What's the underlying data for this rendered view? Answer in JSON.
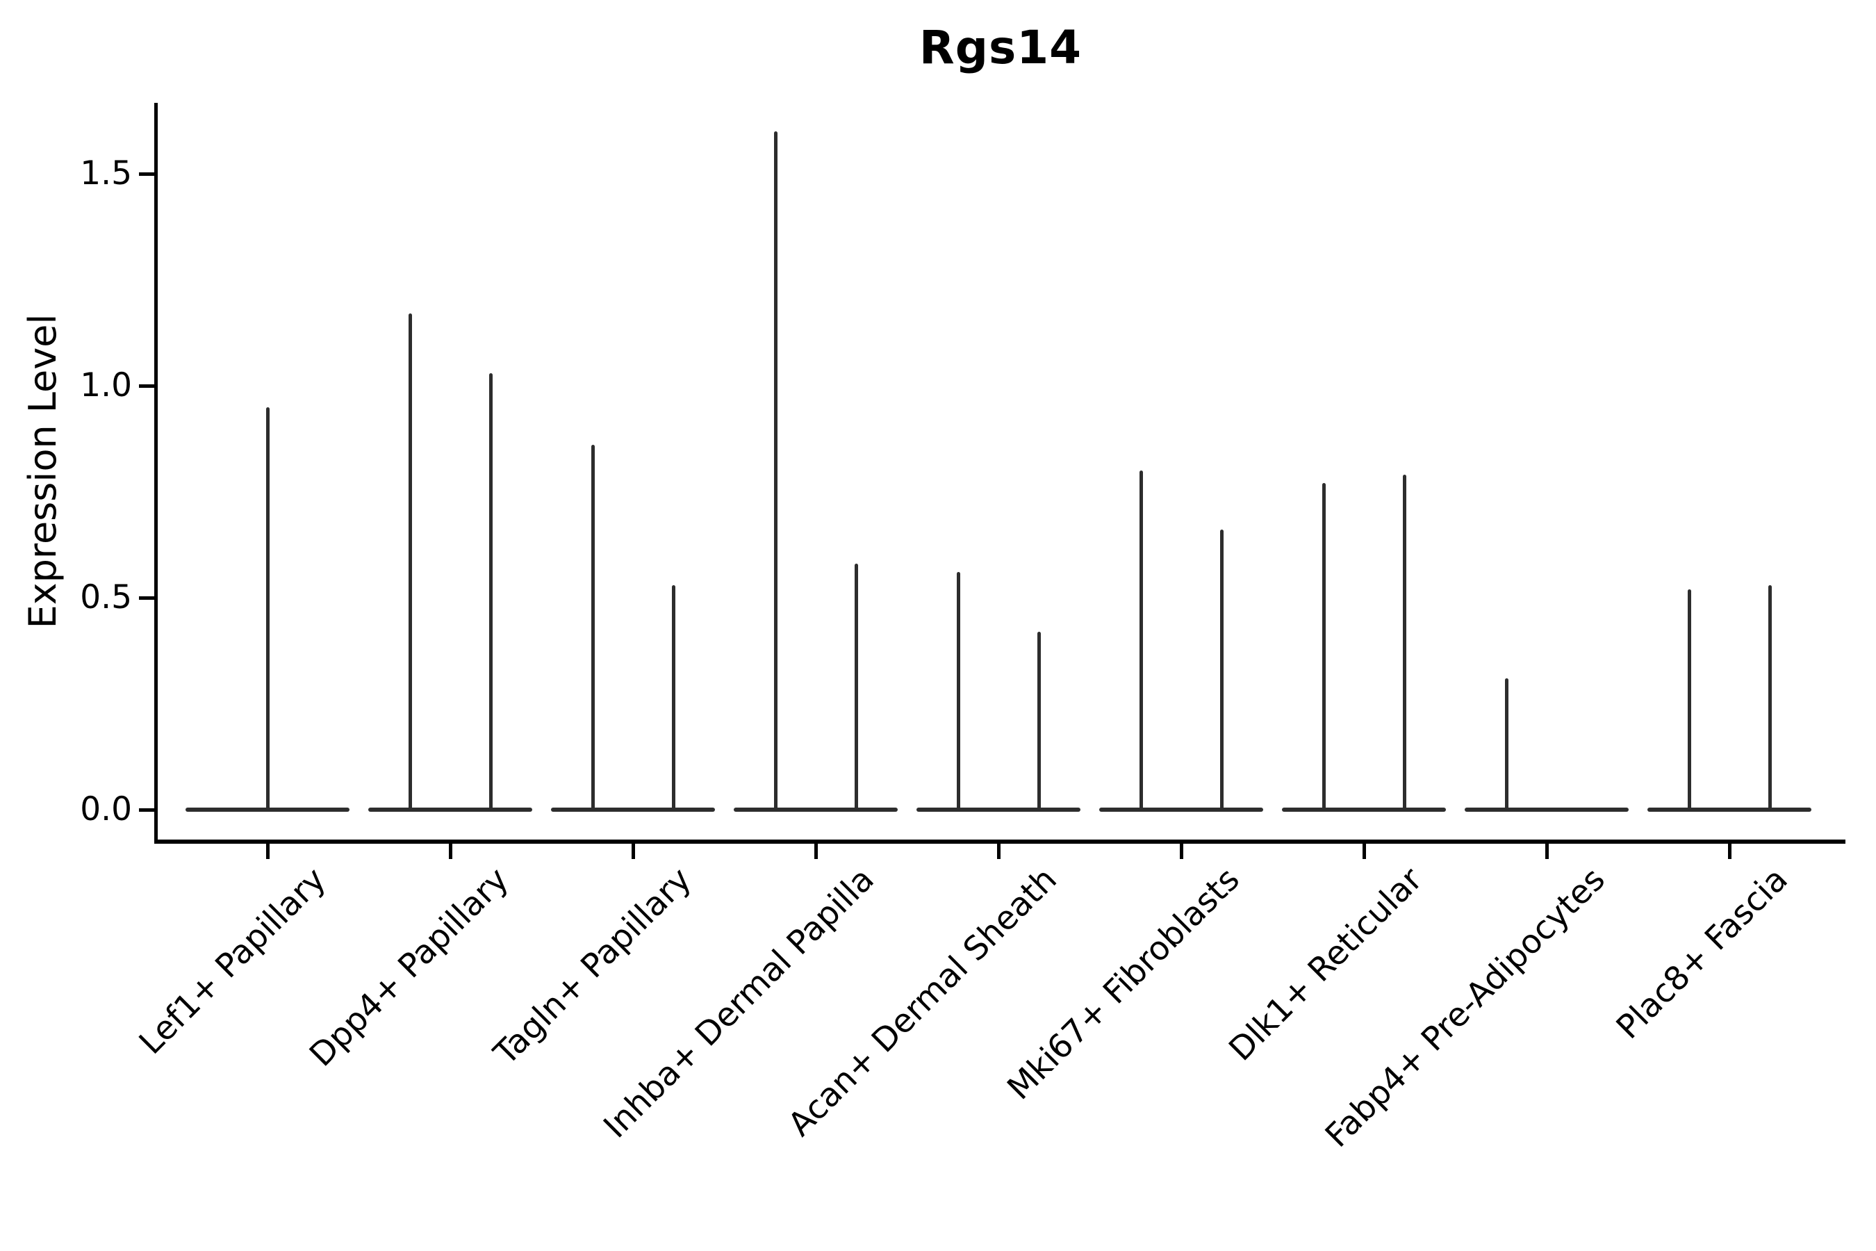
{
  "figure": {
    "title": "Rgs14"
  },
  "chart_data": {
    "type": "violin",
    "title": "Rgs14",
    "xlabel": "",
    "ylabel": "Expression Level",
    "grid": false,
    "legend": "none",
    "line_color": "#2d2d2d",
    "text_color": "#000000",
    "ylim": [
      -0.07,
      1.67
    ],
    "yticks": [
      {
        "label": "0.0",
        "value": 0.0
      },
      {
        "label": "0.5",
        "value": 0.5
      },
      {
        "label": "1.0",
        "value": 1.0
      },
      {
        "label": "1.5",
        "value": 1.5
      }
    ],
    "categories": [
      "Lef1+ Papillary",
      "Dpp4+ Papillary",
      "Tagln+ Papillary",
      "Inhba+ Dermal Papilla",
      "Acan+ Dermal Sheath",
      "Mki67+ Fibroblasts",
      "Dlk1+ Reticular",
      "Fabp4+ Pre-Adipocytes",
      "Plac8+ Fascia"
    ],
    "description": "Violin plot of Rgs14 expression per cell type: nearly all density lies at 0 (wide flat base line per group) with thin vertical tails rising to the maximum expression of each sub-violin (left/right halves per category; single centered tail where only one is visible).",
    "violins": [
      {
        "category": "Lef1+ Papillary",
        "tails": [
          {
            "position": "center",
            "max": 0.95
          }
        ]
      },
      {
        "category": "Dpp4+ Papillary",
        "tails": [
          {
            "position": "left",
            "max": 1.17
          },
          {
            "position": "right",
            "max": 1.03
          }
        ]
      },
      {
        "category": "Tagln+ Papillary",
        "tails": [
          {
            "position": "left",
            "max": 0.86
          },
          {
            "position": "right",
            "max": 0.53
          }
        ]
      },
      {
        "category": "Inhba+ Dermal Papilla",
        "tails": [
          {
            "position": "left",
            "max": 1.6
          },
          {
            "position": "right",
            "max": 0.58
          }
        ]
      },
      {
        "category": "Acan+ Dermal Sheath",
        "tails": [
          {
            "position": "left",
            "max": 0.56
          },
          {
            "position": "right",
            "max": 0.42
          }
        ]
      },
      {
        "category": "Mki67+ Fibroblasts",
        "tails": [
          {
            "position": "left",
            "max": 0.8
          },
          {
            "position": "right",
            "max": 0.66
          }
        ]
      },
      {
        "category": "Dlk1+ Reticular",
        "tails": [
          {
            "position": "left",
            "max": 0.77
          },
          {
            "position": "right",
            "max": 0.79
          }
        ]
      },
      {
        "category": "Fabp4+ Pre-Adipocytes",
        "tails": [
          {
            "position": "left",
            "max": 0.31
          }
        ]
      },
      {
        "category": "Plac8+ Fascia",
        "tails": [
          {
            "position": "left",
            "max": 0.52
          },
          {
            "position": "right",
            "max": 0.53
          }
        ]
      }
    ]
  }
}
